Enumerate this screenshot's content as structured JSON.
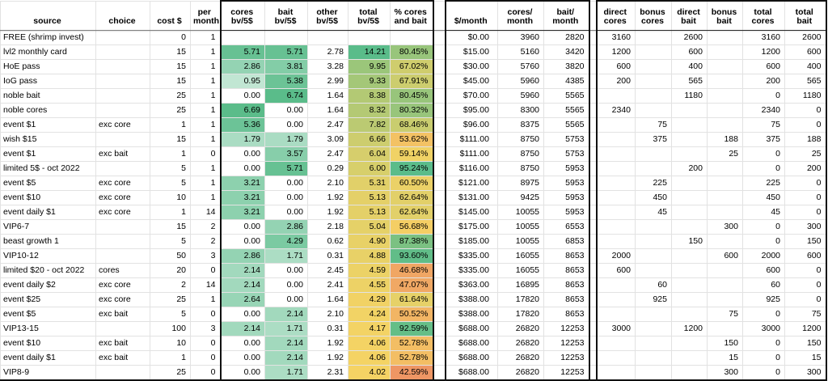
{
  "table": {
    "columns": [
      {
        "id": "source",
        "label": "source"
      },
      {
        "id": "choice",
        "label": "choice"
      },
      {
        "id": "cost",
        "label": "cost $"
      },
      {
        "id": "per-month",
        "label": "per\nmonth"
      },
      {
        "id": "cores-bv",
        "label": "cores\nbv/5$"
      },
      {
        "id": "bait-bv",
        "label": "bait\nbv/5$"
      },
      {
        "id": "other-bv",
        "label": "other\nbv/5$"
      },
      {
        "id": "total-bv",
        "label": "total\nbv/5$"
      },
      {
        "id": "pct-cores-bait",
        "label": "% cores\nand bait"
      },
      {
        "id": "spacer-1",
        "label": ""
      },
      {
        "id": "dollar-month",
        "label": "$/month"
      },
      {
        "id": "cores-month",
        "label": "cores/\nmonth"
      },
      {
        "id": "bait-month",
        "label": "bait/\nmonth"
      },
      {
        "id": "spacer-2",
        "label": ""
      },
      {
        "id": "direct-cores",
        "label": "direct\ncores"
      },
      {
        "id": "bonus-cores",
        "label": "bonus\ncores"
      },
      {
        "id": "direct-bait",
        "label": "direct\nbait"
      },
      {
        "id": "bonus-bait",
        "label": "bonus\nbait"
      },
      {
        "id": "total-cores",
        "label": "total\ncores"
      },
      {
        "id": "total-bait",
        "label": "total\nbait"
      }
    ],
    "rows": [
      [
        "FREE (shrimp invest)",
        "",
        "0",
        "1",
        "",
        "",
        "",
        "",
        "",
        "",
        "$0.00",
        "3960",
        "2820",
        "",
        "3160",
        "",
        "2600",
        "",
        "3160",
        "2600"
      ],
      [
        "lvl2 monthly card",
        "",
        "15",
        "1",
        "5.71",
        "5.71",
        "2.78",
        "14.21",
        "80.45%",
        "",
        "$15.00",
        "5160",
        "3420",
        "",
        "1200",
        "",
        "600",
        "",
        "1200",
        "600"
      ],
      [
        "HoE pass",
        "",
        "15",
        "1",
        "2.86",
        "3.81",
        "3.28",
        "9.95",
        "67.02%",
        "",
        "$30.00",
        "5760",
        "3820",
        "",
        "600",
        "",
        "400",
        "",
        "600",
        "400"
      ],
      [
        "IoG pass",
        "",
        "15",
        "1",
        "0.95",
        "5.38",
        "2.99",
        "9.33",
        "67.91%",
        "",
        "$45.00",
        "5960",
        "4385",
        "",
        "200",
        "",
        "565",
        "",
        "200",
        "565"
      ],
      [
        "noble bait",
        "",
        "25",
        "1",
        "0.00",
        "6.74",
        "1.64",
        "8.38",
        "80.45%",
        "",
        "$70.00",
        "5960",
        "5565",
        "",
        "",
        "",
        "1180",
        "",
        "0",
        "1180"
      ],
      [
        "noble cores",
        "",
        "25",
        "1",
        "6.69",
        "0.00",
        "1.64",
        "8.32",
        "80.32%",
        "",
        "$95.00",
        "8300",
        "5565",
        "",
        "2340",
        "",
        "",
        "",
        "2340",
        "0"
      ],
      [
        "event $1",
        "exc core",
        "1",
        "1",
        "5.36",
        "0.00",
        "2.47",
        "7.82",
        "68.46%",
        "",
        "$96.00",
        "8375",
        "5565",
        "",
        "",
        "75",
        "",
        "",
        "75",
        "0"
      ],
      [
        "wish $15",
        "",
        "15",
        "1",
        "1.79",
        "1.79",
        "3.09",
        "6.66",
        "53.62%",
        "",
        "$111.00",
        "8750",
        "5753",
        "",
        "",
        "375",
        "",
        "188",
        "375",
        "188"
      ],
      [
        "event $1",
        "exc bait",
        "1",
        "0",
        "0.00",
        "3.57",
        "2.47",
        "6.04",
        "59.14%",
        "",
        "$111.00",
        "8750",
        "5753",
        "",
        "",
        "",
        "",
        "25",
        "0",
        "25"
      ],
      [
        "limited 5$ - oct 2022",
        "",
        "5",
        "1",
        "0.00",
        "5.71",
        "0.29",
        "6.00",
        "95.24%",
        "",
        "$116.00",
        "8750",
        "5953",
        "",
        "",
        "",
        "200",
        "",
        "0",
        "200"
      ],
      [
        "event $5",
        "exc core",
        "5",
        "1",
        "3.21",
        "0.00",
        "2.10",
        "5.31",
        "60.50%",
        "",
        "$121.00",
        "8975",
        "5953",
        "",
        "",
        "225",
        "",
        "",
        "225",
        "0"
      ],
      [
        "event $10",
        "exc core",
        "10",
        "1",
        "3.21",
        "0.00",
        "1.92",
        "5.13",
        "62.64%",
        "",
        "$131.00",
        "9425",
        "5953",
        "",
        "",
        "450",
        "",
        "",
        "450",
        "0"
      ],
      [
        "event daily $1",
        "exc core",
        "1",
        "14",
        "3.21",
        "0.00",
        "1.92",
        "5.13",
        "62.64%",
        "",
        "$145.00",
        "10055",
        "5953",
        "",
        "",
        "45",
        "",
        "",
        "45",
        "0"
      ],
      [
        "VIP6-7",
        "",
        "15",
        "2",
        "0.00",
        "2.86",
        "2.18",
        "5.04",
        "56.68%",
        "",
        "$175.00",
        "10055",
        "6553",
        "",
        "",
        "",
        "",
        "300",
        "0",
        "300"
      ],
      [
        "beast growth 1",
        "",
        "5",
        "2",
        "0.00",
        "4.29",
        "0.62",
        "4.90",
        "87.38%",
        "",
        "$185.00",
        "10055",
        "6853",
        "",
        "",
        "",
        "150",
        "",
        "0",
        "150"
      ],
      [
        "VIP10-12",
        "",
        "50",
        "3",
        "2.86",
        "1.71",
        "0.31",
        "4.88",
        "93.60%",
        "",
        "$335.00",
        "16055",
        "8653",
        "",
        "2000",
        "",
        "",
        "600",
        "2000",
        "600"
      ],
      [
        "limited $20 - oct 2022",
        "cores",
        "20",
        "0",
        "2.14",
        "0.00",
        "2.45",
        "4.59",
        "46.68%",
        "",
        "$335.00",
        "16055",
        "8653",
        "",
        "600",
        "",
        "",
        "",
        "600",
        "0"
      ],
      [
        "event daily $2",
        "exc core",
        "2",
        "14",
        "2.14",
        "0.00",
        "2.41",
        "4.55",
        "47.07%",
        "",
        "$363.00",
        "16895",
        "8653",
        "",
        "",
        "60",
        "",
        "",
        "60",
        "0"
      ],
      [
        "event $25",
        "exc core",
        "25",
        "1",
        "2.64",
        "0.00",
        "1.64",
        "4.29",
        "61.64%",
        "",
        "$388.00",
        "17820",
        "8653",
        "",
        "",
        "925",
        "",
        "",
        "925",
        "0"
      ],
      [
        "event $5",
        "exc bait",
        "5",
        "0",
        "0.00",
        "2.14",
        "2.10",
        "4.24",
        "50.52%",
        "",
        "$388.00",
        "17820",
        "8653",
        "",
        "",
        "",
        "",
        "75",
        "0",
        "75"
      ],
      [
        "VIP13-15",
        "",
        "100",
        "3",
        "2.14",
        "1.71",
        "0.31",
        "4.17",
        "92.59%",
        "",
        "$688.00",
        "26820",
        "12253",
        "",
        "3000",
        "",
        "1200",
        "",
        "3000",
        "1200"
      ],
      [
        "event $10",
        "exc bait",
        "10",
        "0",
        "0.00",
        "2.14",
        "1.92",
        "4.06",
        "52.78%",
        "",
        "$688.00",
        "26820",
        "12253",
        "",
        "",
        "",
        "",
        "150",
        "0",
        "150"
      ],
      [
        "event daily $1",
        "exc bait",
        "1",
        "0",
        "0.00",
        "2.14",
        "1.92",
        "4.06",
        "52.78%",
        "",
        "$688.00",
        "26820",
        "12253",
        "",
        "",
        "",
        "",
        "15",
        "0",
        "15"
      ],
      [
        "VIP8-9",
        "",
        "25",
        "0",
        "0.00",
        "1.71",
        "2.31",
        "4.02",
        "42.59%",
        "",
        "$688.00",
        "26820",
        "12253",
        "",
        "",
        "",
        "",
        "300",
        "0",
        "300"
      ]
    ]
  },
  "colors": {
    "grid_line": "#e2e2e2",
    "section_border": "#111111",
    "scale_green": "#5abc8a",
    "scale_yellow": "#f5d364",
    "scale_red": "#ee9664",
    "scale_white": "#ffffff"
  },
  "color_scales": {
    "bv": {
      "min": 0,
      "max": 6.74
    },
    "total": {
      "min": 4.02,
      "max": 14.21
    },
    "pct": {
      "min": 42.59,
      "mid": 58,
      "max": 95.24
    }
  }
}
